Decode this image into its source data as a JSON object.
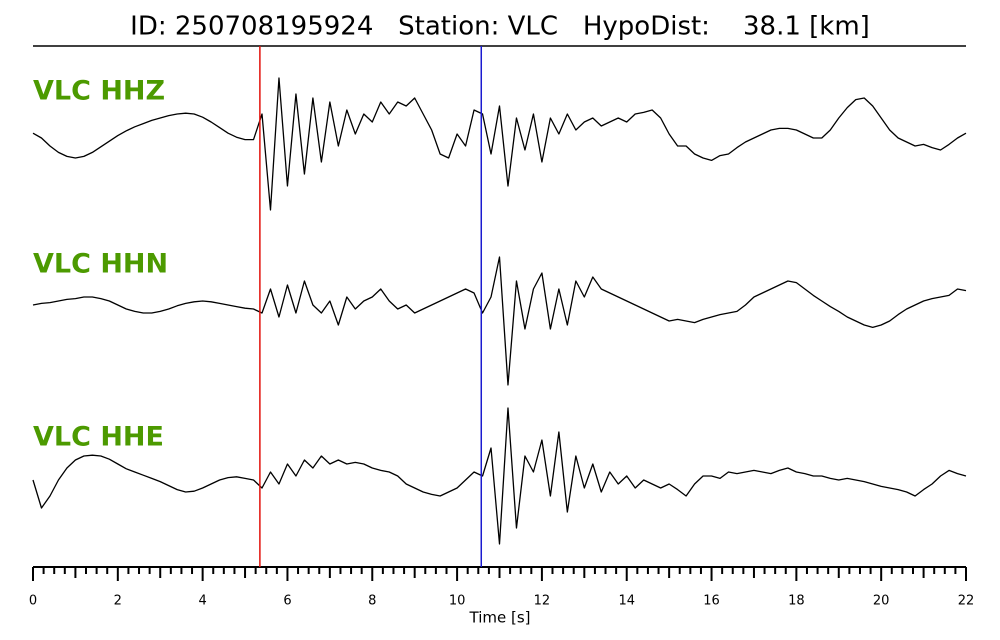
{
  "chart_data": {
    "type": "line",
    "title": "ID: 250708195924   Station: VLC   HypoDist:    38.1 [km]",
    "xlabel": "Time [s]",
    "xlim": [
      0,
      22
    ],
    "xticks": [
      0,
      2,
      4,
      6,
      8,
      10,
      12,
      14,
      16,
      18,
      20,
      22
    ],
    "xminorticks": [
      0.25,
      0.5,
      0.75,
      1,
      1.25,
      1.5,
      1.75,
      2.25,
      2.5,
      2.75,
      3,
      3.25,
      3.5,
      3.75,
      4.25,
      4.5,
      4.75,
      5,
      5.25,
      5.5,
      5.75,
      6.25,
      6.5,
      6.75,
      7,
      7.25,
      7.5,
      7.75,
      8.25,
      8.5,
      8.75,
      9,
      9.25,
      9.5,
      9.75,
      10.25,
      10.5,
      10.75,
      11,
      11.25,
      11.5,
      11.75,
      12.25,
      12.5,
      12.75,
      13,
      13.25,
      13.5,
      13.75,
      14.25,
      14.5,
      14.75,
      15,
      15.25,
      15.5,
      15.75,
      16.25,
      16.5,
      16.75,
      17,
      17.25,
      17.5,
      17.75,
      18.25,
      18.5,
      18.75,
      19,
      19.25,
      19.5,
      19.75,
      20.25,
      20.5,
      20.75,
      21,
      21.25,
      21.5,
      21.75
    ],
    "ylim": [
      -1,
      1
    ],
    "label_color": "#4c9a00",
    "markers": [
      {
        "x": 5.35,
        "color": "#e3110b"
      },
      {
        "x": 10.57,
        "color": "#1a1ad0"
      }
    ],
    "x": [
      0,
      0.2,
      0.4,
      0.6,
      0.8,
      1,
      1.2,
      1.4,
      1.6,
      1.8,
      2,
      2.2,
      2.4,
      2.6,
      2.8,
      3,
      3.2,
      3.4,
      3.6,
      3.8,
      4,
      4.2,
      4.4,
      4.6,
      4.8,
      5,
      5.2,
      5.4,
      5.6,
      5.8,
      6,
      6.2,
      6.4,
      6.6,
      6.8,
      7,
      7.2,
      7.4,
      7.6,
      7.8,
      8,
      8.2,
      8.4,
      8.6,
      8.8,
      9,
      9.2,
      9.4,
      9.6,
      9.8,
      10,
      10.2,
      10.4,
      10.6,
      10.8,
      11,
      11.2,
      11.4,
      11.6,
      11.8,
      12,
      12.2,
      12.4,
      12.6,
      12.8,
      13,
      13.2,
      13.4,
      13.6,
      13.8,
      14,
      14.2,
      14.4,
      14.6,
      14.8,
      15,
      15.2,
      15.4,
      15.6,
      15.8,
      16,
      16.2,
      16.4,
      16.6,
      16.8,
      17,
      17.2,
      17.4,
      17.6,
      17.8,
      18,
      18.2,
      18.4,
      18.6,
      18.8,
      19,
      19.2,
      19.4,
      19.6,
      19.8,
      20,
      20.2,
      20.4,
      20.6,
      20.8,
      21,
      21.2,
      21.4,
      21.6,
      21.8,
      22
    ],
    "series": [
      {
        "name": "VLC HHZ",
        "color": "#000000",
        "values": [
          0.06,
          0.0,
          -0.1,
          -0.18,
          -0.23,
          -0.25,
          -0.23,
          -0.18,
          -0.11,
          -0.04,
          0.03,
          0.09,
          0.14,
          0.18,
          0.22,
          0.25,
          0.28,
          0.3,
          0.31,
          0.3,
          0.26,
          0.2,
          0.13,
          0.06,
          0.01,
          -0.02,
          -0.02,
          0.3,
          -0.9,
          0.75,
          -0.6,
          0.55,
          -0.45,
          0.5,
          -0.3,
          0.45,
          -0.1,
          0.35,
          0.05,
          0.3,
          0.2,
          0.45,
          0.3,
          0.45,
          0.4,
          0.5,
          0.3,
          0.1,
          -0.2,
          -0.25,
          0.05,
          -0.1,
          0.35,
          0.3,
          -0.2,
          0.4,
          -0.6,
          0.25,
          -0.15,
          0.3,
          -0.3,
          0.25,
          0.05,
          0.3,
          0.1,
          0.2,
          0.25,
          0.15,
          0.2,
          0.25,
          0.2,
          0.3,
          0.32,
          0.35,
          0.25,
          0.05,
          -0.1,
          -0.1,
          -0.2,
          -0.25,
          -0.28,
          -0.22,
          -0.2,
          -0.12,
          -0.05,
          0.0,
          0.05,
          0.1,
          0.12,
          0.12,
          0.1,
          0.05,
          0.0,
          0.0,
          0.1,
          0.25,
          0.38,
          0.48,
          0.5,
          0.4,
          0.25,
          0.1,
          0.0,
          -0.05,
          -0.1,
          -0.08,
          -0.12,
          -0.15,
          -0.08,
          0.0,
          0.06
        ]
      },
      {
        "name": "VLC HHN",
        "color": "#000000",
        "values": [
          0.0,
          0.02,
          0.03,
          0.05,
          0.07,
          0.08,
          0.1,
          0.1,
          0.08,
          0.05,
          0.0,
          -0.05,
          -0.08,
          -0.1,
          -0.1,
          -0.08,
          -0.05,
          -0.01,
          0.02,
          0.04,
          0.05,
          0.04,
          0.02,
          0.0,
          -0.02,
          -0.04,
          -0.05,
          -0.1,
          0.2,
          -0.15,
          0.25,
          -0.1,
          0.3,
          0.0,
          -0.1,
          0.05,
          -0.25,
          0.1,
          -0.05,
          0.05,
          0.1,
          0.2,
          0.05,
          -0.05,
          0.0,
          -0.1,
          -0.05,
          0.0,
          0.05,
          0.1,
          0.15,
          0.2,
          0.15,
          -0.1,
          0.1,
          0.6,
          -1.0,
          0.3,
          -0.3,
          0.2,
          0.4,
          -0.3,
          0.2,
          -0.25,
          0.3,
          0.1,
          0.35,
          0.2,
          0.15,
          0.1,
          0.05,
          0.0,
          -0.05,
          -0.1,
          -0.15,
          -0.2,
          -0.18,
          -0.2,
          -0.22,
          -0.18,
          -0.15,
          -0.12,
          -0.1,
          -0.08,
          0.0,
          0.1,
          0.15,
          0.2,
          0.25,
          0.3,
          0.28,
          0.2,
          0.12,
          0.05,
          -0.02,
          -0.08,
          -0.15,
          -0.2,
          -0.25,
          -0.28,
          -0.25,
          -0.2,
          -0.12,
          -0.05,
          0.0,
          0.05,
          0.08,
          0.1,
          0.12,
          0.2,
          0.18
        ]
      },
      {
        "name": "VLC HHE",
        "color": "#000000",
        "values": [
          0.0,
          -0.35,
          -0.2,
          0.0,
          0.15,
          0.25,
          0.3,
          0.31,
          0.3,
          0.26,
          0.2,
          0.14,
          0.1,
          0.06,
          0.02,
          -0.02,
          -0.07,
          -0.12,
          -0.15,
          -0.14,
          -0.1,
          -0.05,
          0.0,
          0.03,
          0.04,
          0.02,
          0.0,
          -0.1,
          0.1,
          -0.05,
          0.2,
          0.05,
          0.25,
          0.15,
          0.3,
          0.2,
          0.25,
          0.2,
          0.22,
          0.2,
          0.15,
          0.12,
          0.1,
          0.05,
          -0.05,
          -0.1,
          -0.15,
          -0.18,
          -0.2,
          -0.15,
          -0.1,
          0.0,
          0.1,
          0.05,
          0.4,
          -0.8,
          0.9,
          -0.6,
          0.3,
          0.1,
          0.5,
          -0.2,
          0.6,
          -0.4,
          0.3,
          -0.1,
          0.2,
          -0.15,
          0.1,
          -0.05,
          0.05,
          -0.1,
          0.0,
          -0.05,
          -0.1,
          -0.05,
          -0.12,
          -0.2,
          -0.05,
          0.05,
          0.05,
          0.02,
          0.1,
          0.08,
          0.1,
          0.12,
          0.1,
          0.08,
          0.12,
          0.15,
          0.1,
          0.08,
          0.05,
          0.05,
          0.02,
          0.0,
          0.02,
          0.0,
          -0.02,
          -0.05,
          -0.08,
          -0.1,
          -0.12,
          -0.15,
          -0.2,
          -0.12,
          -0.05,
          0.05,
          0.12,
          0.08,
          0.05
        ]
      }
    ]
  }
}
